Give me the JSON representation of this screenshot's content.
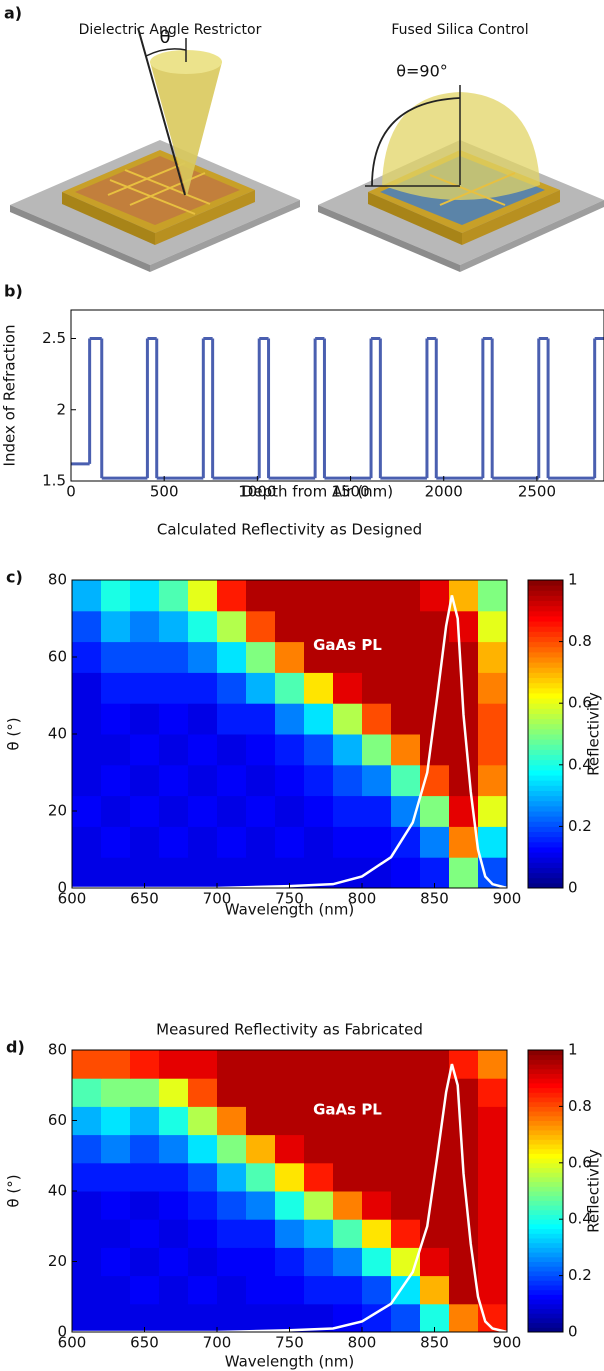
{
  "illustration": {
    "label": "a)",
    "left_title": "Dielectric Angle Restrictor",
    "right_title": "Fused Silica Control",
    "theta": "θ",
    "theta_90": "θ=90°"
  },
  "chart_data": [
    {
      "type": "step",
      "label": "b)",
      "x_label": "Depth from Air (nm)",
      "y_label": "Index of Refraction",
      "color": "#4a5fb0",
      "x": [
        0,
        100,
        165,
        410,
        460,
        710,
        760,
        1010,
        1060,
        1310,
        1360,
        1610,
        1660,
        1910,
        1960,
        2210,
        2260,
        2510,
        2560,
        2810
      ],
      "values": [
        1.62,
        2.5,
        1.52,
        2.5,
        1.52,
        2.5,
        1.52,
        2.5,
        1.52,
        2.5,
        1.52,
        2.5,
        1.52,
        2.5,
        1.52,
        2.5,
        1.52,
        2.5,
        1.52,
        2.5
      ],
      "xlim": [
        0,
        2860
      ],
      "xticks": [
        0,
        500,
        1000,
        1500,
        2000,
        2500
      ],
      "ylim": [
        1.5,
        2.7
      ],
      "yticks": [
        1.5,
        2,
        2.5
      ]
    },
    {
      "type": "heatmap",
      "label": "c)",
      "title": "Calculated Reflectivity as Designed",
      "x_label": "Wavelength (nm)",
      "y_label": "θ (°)",
      "colorbar_label": "Reflectivity",
      "x_bins": [
        600,
        620,
        640,
        660,
        680,
        700,
        720,
        740,
        760,
        780,
        800,
        820,
        840,
        860,
        880,
        900
      ],
      "y_bins": [
        0,
        8,
        16,
        24,
        32,
        40,
        48,
        56,
        64,
        72,
        80
      ],
      "z": [
        [
          0.1,
          0.1,
          0.1,
          0.1,
          0.1,
          0.1,
          0.1,
          0.1,
          0.1,
          0.1,
          0.1,
          0.12,
          0.15,
          0.5,
          0.2
        ],
        [
          0.1,
          0.12,
          0.1,
          0.12,
          0.1,
          0.12,
          0.1,
          0.12,
          0.1,
          0.12,
          0.12,
          0.15,
          0.25,
          0.75,
          0.35
        ],
        [
          0.12,
          0.1,
          0.12,
          0.1,
          0.12,
          0.1,
          0.12,
          0.1,
          0.12,
          0.15,
          0.15,
          0.25,
          0.5,
          0.9,
          0.6
        ],
        [
          0.1,
          0.12,
          0.1,
          0.12,
          0.1,
          0.12,
          0.1,
          0.12,
          0.15,
          0.2,
          0.25,
          0.45,
          0.8,
          0.95,
          0.75
        ],
        [
          0.1,
          0.1,
          0.12,
          0.1,
          0.12,
          0.1,
          0.12,
          0.15,
          0.2,
          0.3,
          0.5,
          0.75,
          0.95,
          0.95,
          0.8
        ],
        [
          0.1,
          0.12,
          0.1,
          0.12,
          0.1,
          0.15,
          0.15,
          0.25,
          0.35,
          0.55,
          0.8,
          0.95,
          0.95,
          0.95,
          0.8
        ],
        [
          0.1,
          0.15,
          0.15,
          0.15,
          0.15,
          0.2,
          0.3,
          0.45,
          0.65,
          0.9,
          0.95,
          0.95,
          0.95,
          0.95,
          0.75
        ],
        [
          0.15,
          0.2,
          0.2,
          0.2,
          0.25,
          0.35,
          0.5,
          0.75,
          0.95,
          0.95,
          0.95,
          0.95,
          0.95,
          0.95,
          0.7
        ],
        [
          0.2,
          0.3,
          0.25,
          0.3,
          0.4,
          0.55,
          0.8,
          0.95,
          0.95,
          0.95,
          0.95,
          0.95,
          0.95,
          0.9,
          0.6
        ],
        [
          0.3,
          0.4,
          0.35,
          0.45,
          0.6,
          0.85,
          0.95,
          0.95,
          0.95,
          0.95,
          0.95,
          0.95,
          0.9,
          0.7,
          0.5
        ]
      ],
      "clim": [
        0,
        1
      ],
      "cticks": [
        0,
        0.2,
        0.4,
        0.6,
        0.8,
        1
      ],
      "xlim": [
        600,
        900
      ],
      "xticks": [
        600,
        650,
        700,
        750,
        800,
        850,
        900
      ],
      "ylim": [
        0,
        80
      ],
      "yticks": [
        0,
        20,
        40,
        60,
        80
      ],
      "series": [
        {
          "name": "GaAs PL",
          "color": "#ffffff",
          "x": [
            600,
            700,
            750,
            780,
            800,
            820,
            835,
            845,
            852,
            858,
            862,
            866,
            870,
            875,
            880,
            885,
            890,
            900
          ],
          "values": [
            0,
            0,
            0.5,
            1,
            3,
            8,
            17,
            30,
            50,
            68,
            76,
            70,
            45,
            25,
            10,
            3,
            1,
            0
          ]
        }
      ]
    },
    {
      "type": "heatmap",
      "label": "d)",
      "title": "Measured Reflectivity as Fabricated",
      "x_label": "Wavelength (nm)",
      "y_label": "θ (°)",
      "colorbar_label": "Reflectivity",
      "x_bins": [
        600,
        620,
        640,
        660,
        680,
        700,
        720,
        740,
        760,
        780,
        800,
        820,
        840,
        860,
        880,
        900
      ],
      "y_bins": [
        0,
        8,
        16,
        24,
        32,
        40,
        48,
        56,
        64,
        72,
        80
      ],
      "z": [
        [
          0.1,
          0.1,
          0.1,
          0.1,
          0.1,
          0.1,
          0.1,
          0.1,
          0.1,
          0.12,
          0.15,
          0.2,
          0.4,
          0.75,
          0.85
        ],
        [
          0.1,
          0.1,
          0.12,
          0.1,
          0.12,
          0.1,
          0.12,
          0.12,
          0.15,
          0.15,
          0.2,
          0.35,
          0.7,
          0.95,
          0.9
        ],
        [
          0.1,
          0.12,
          0.1,
          0.12,
          0.1,
          0.12,
          0.12,
          0.15,
          0.2,
          0.25,
          0.4,
          0.6,
          0.9,
          0.95,
          0.9
        ],
        [
          0.1,
          0.1,
          0.12,
          0.1,
          0.12,
          0.15,
          0.15,
          0.25,
          0.3,
          0.45,
          0.65,
          0.85,
          0.95,
          0.95,
          0.9
        ],
        [
          0.1,
          0.12,
          0.1,
          0.12,
          0.15,
          0.2,
          0.25,
          0.4,
          0.55,
          0.75,
          0.9,
          0.95,
          0.95,
          0.95,
          0.9
        ],
        [
          0.15,
          0.15,
          0.15,
          0.15,
          0.2,
          0.3,
          0.45,
          0.65,
          0.85,
          0.95,
          0.95,
          0.95,
          0.95,
          0.95,
          0.9
        ],
        [
          0.2,
          0.25,
          0.2,
          0.25,
          0.35,
          0.5,
          0.7,
          0.9,
          0.95,
          0.95,
          0.95,
          0.95,
          0.95,
          0.95,
          0.9
        ],
        [
          0.3,
          0.35,
          0.3,
          0.4,
          0.55,
          0.75,
          0.95,
          0.95,
          0.95,
          0.95,
          0.95,
          0.95,
          0.95,
          0.95,
          0.9
        ],
        [
          0.45,
          0.5,
          0.5,
          0.6,
          0.8,
          0.95,
          0.95,
          0.95,
          0.95,
          0.95,
          0.95,
          0.95,
          0.95,
          0.95,
          0.85
        ],
        [
          0.8,
          0.8,
          0.85,
          0.9,
          0.9,
          0.95,
          0.95,
          0.95,
          0.95,
          0.95,
          0.95,
          0.95,
          0.95,
          0.85,
          0.75
        ]
      ],
      "clim": [
        0,
        1
      ],
      "cticks": [
        0,
        0.2,
        0.4,
        0.6,
        0.8,
        1
      ],
      "xlim": [
        600,
        900
      ],
      "xticks": [
        600,
        650,
        700,
        750,
        800,
        850,
        900
      ],
      "ylim": [
        0,
        80
      ],
      "yticks": [
        0,
        20,
        40,
        60,
        80
      ],
      "series": [
        {
          "name": "GaAs PL",
          "color": "#ffffff",
          "x": [
            600,
            700,
            750,
            780,
            800,
            820,
            835,
            845,
            852,
            858,
            862,
            866,
            870,
            875,
            880,
            885,
            890,
            900
          ],
          "values": [
            0,
            0,
            0.5,
            1,
            3,
            8,
            17,
            30,
            50,
            68,
            76,
            70,
            45,
            25,
            10,
            3,
            1,
            0
          ]
        }
      ]
    }
  ]
}
